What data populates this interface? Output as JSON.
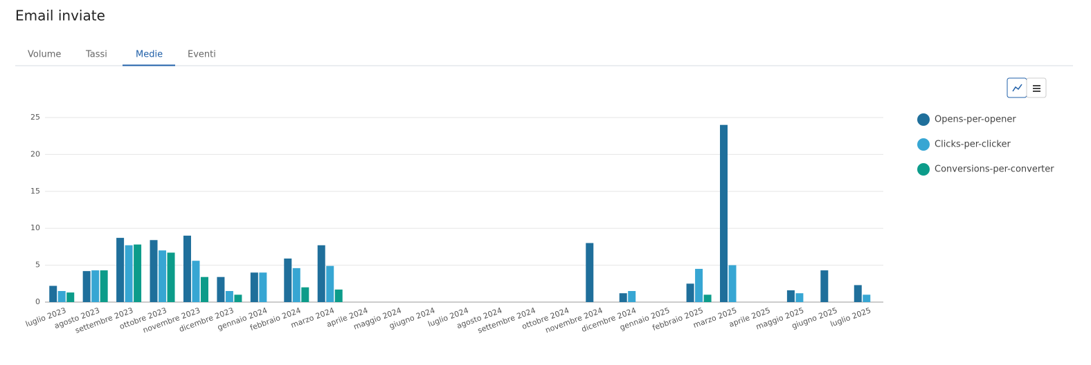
{
  "header": {
    "title": "Email inviate"
  },
  "tabs": [
    "Volume",
    "Tassi",
    "Medie",
    "Eventi"
  ],
  "active_tab": 2,
  "chart_data": {
    "type": "bar",
    "grid": true,
    "categories": [
      "luglio 2023",
      "agosto 2023",
      "settembre 2023",
      "ottobre 2023",
      "novembre 2023",
      "dicembre 2023",
      "gennaio 2024",
      "febbraio 2024",
      "marzo 2024",
      "aprile 2024",
      "maggio 2024",
      "giugno 2024",
      "luglio 2024",
      "agosto 2024",
      "settembre 2024",
      "ottobre 2024",
      "novembre 2024",
      "dicembre 2024",
      "gennaio 2025",
      "febbraio 2025",
      "marzo 2025",
      "aprile 2025",
      "maggio 2025",
      "giugno 2025",
      "luglio 2025"
    ],
    "series": [
      {
        "name": "Opens-per-opener",
        "color": "#1f6f9b",
        "values": [
          2.2,
          4.2,
          8.7,
          8.4,
          9.0,
          3.4,
          4.0,
          5.9,
          7.7,
          null,
          null,
          null,
          null,
          null,
          null,
          null,
          8.0,
          1.2,
          null,
          2.5,
          24.0,
          null,
          1.6,
          4.3,
          2.3
        ]
      },
      {
        "name": "Clicks-per-clicker",
        "color": "#37a6d3",
        "values": [
          1.5,
          4.3,
          7.7,
          7.0,
          5.6,
          1.5,
          4.0,
          4.6,
          4.9,
          null,
          null,
          null,
          null,
          null,
          null,
          null,
          null,
          1.5,
          null,
          4.5,
          5.0,
          null,
          1.2,
          null,
          1.0
        ]
      },
      {
        "name": "Conversions-per-converter",
        "color": "#0c9c8a",
        "values": [
          1.3,
          4.3,
          7.8,
          6.7,
          3.4,
          1.0,
          null,
          2.0,
          1.7,
          null,
          null,
          null,
          null,
          null,
          null,
          null,
          null,
          null,
          null,
          1.0,
          null,
          null,
          null,
          null,
          null
        ]
      }
    ],
    "ylim": [
      0,
      25
    ],
    "yticks": [
      0,
      5,
      10,
      15,
      20,
      25
    ]
  }
}
